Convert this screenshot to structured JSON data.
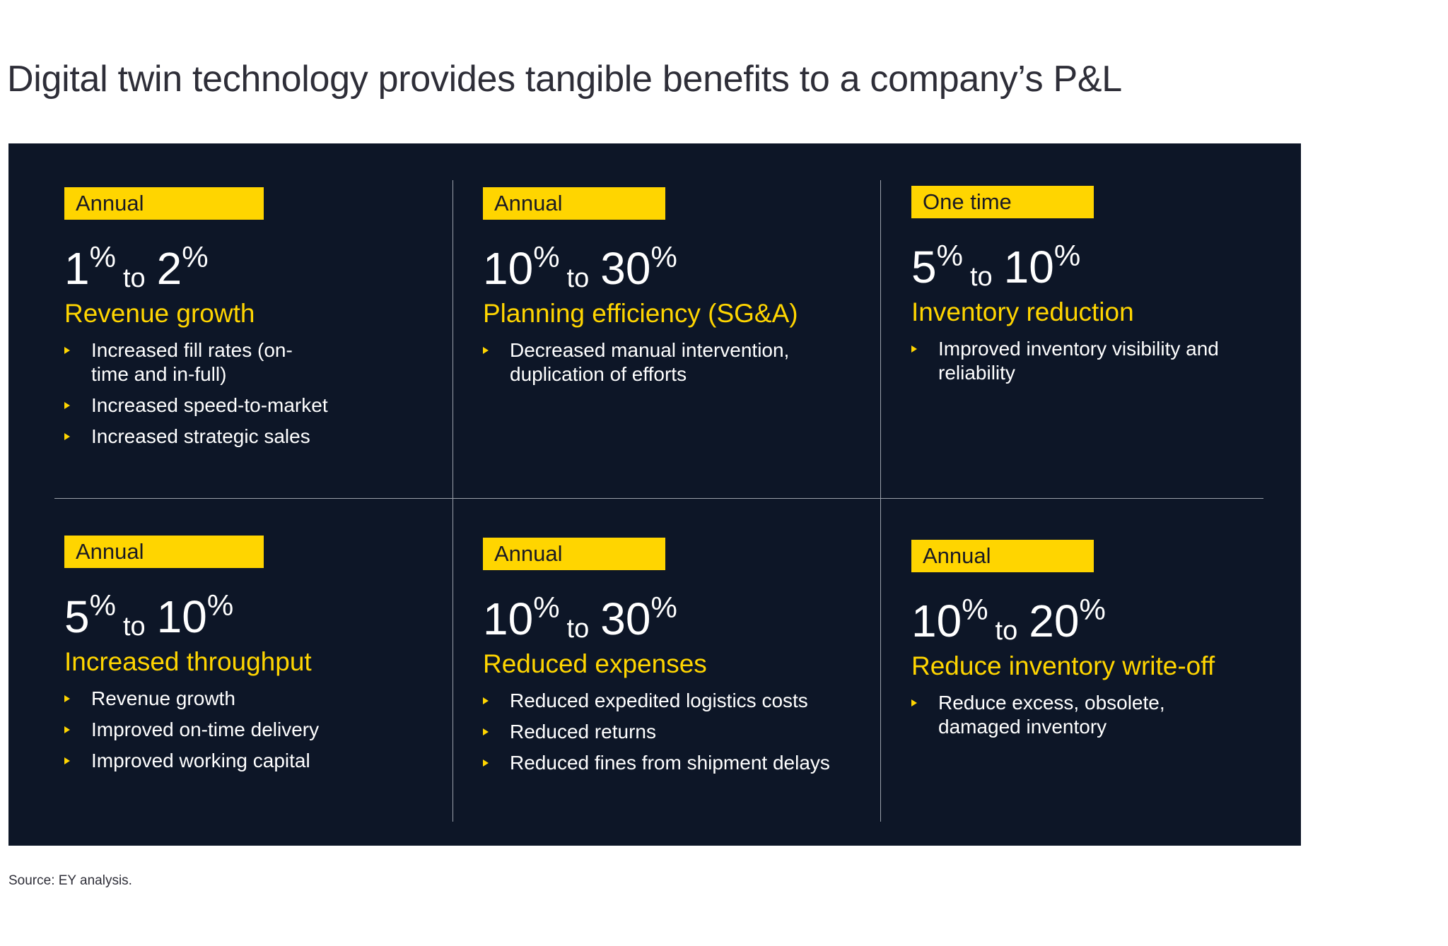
{
  "title": "Digital twin technology provides tangible benefits to a company’s P&L",
  "cards": [
    {
      "badge": "Annual",
      "low": "1",
      "high": "2",
      "unit": "%",
      "to": "to",
      "metric": "Revenue growth",
      "bullets": [
        "Increased fill rates (on-time and in-full)",
        "Increased speed-to-market",
        "Increased strategic sales"
      ]
    },
    {
      "badge": "Annual",
      "low": "10",
      "high": "30",
      "unit": "%",
      "to": "to",
      "metric": "Planning efficiency (SG&A)",
      "bullets": [
        "Decreased manual intervention, duplication of efforts"
      ]
    },
    {
      "badge": "One time",
      "low": "5",
      "high": "10",
      "unit": "%",
      "to": "to",
      "metric": "Inventory reduction",
      "bullets": [
        "Improved inventory visibility and reliability"
      ]
    },
    {
      "badge": "Annual",
      "low": "5",
      "high": "10",
      "unit": "%",
      "to": "to",
      "metric": "Increased throughput",
      "bullets": [
        "Revenue growth",
        "Improved on-time delivery",
        "Improved working capital"
      ]
    },
    {
      "badge": "Annual",
      "low": "10",
      "high": "30",
      "unit": "%",
      "to": "to",
      "metric": "Reduced expenses",
      "bullets": [
        "Reduced expedited logistics costs",
        "Reduced returns",
        "Reduced fines from shipment delays"
      ]
    },
    {
      "badge": "Annual",
      "low": "10",
      "high": "20",
      "unit": "%",
      "to": "to",
      "metric": "Reduce inventory write-off",
      "bullets": [
        "Reduce excess, obsolete, damaged inventory"
      ]
    }
  ],
  "source": "Source: EY analysis.",
  "colors": {
    "panel": "#0d1627",
    "accent": "#ffd500",
    "text": "#ffffff",
    "title": "#2e2e38"
  },
  "icons": {
    "bullet": "triangle-right-icon"
  }
}
